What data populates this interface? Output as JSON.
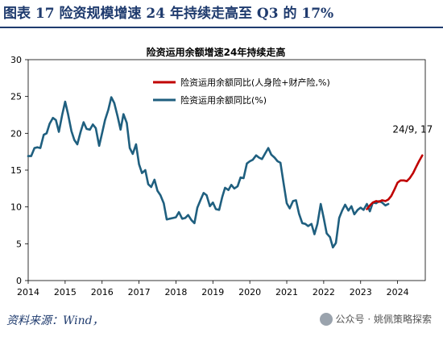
{
  "figure": {
    "title": "图表 17   险资规模增速 24 年持续走高至 Q3 的 17%",
    "source": "资料来源：Wind，",
    "watermark": "公众号 · 姚佩策略探索",
    "watermark_icon": "wechat-icon"
  },
  "colors": {
    "title": "#1f3b6e",
    "series_blue": "#1f5f7f",
    "series_red": "#c00000"
  },
  "chart_data": {
    "type": "line",
    "title": "险资运用余额增速24年持续走高",
    "xlim": [
      2014,
      2024.75
    ],
    "ylim": [
      0,
      30
    ],
    "x_ticks": [
      "2014",
      "2015",
      "2016",
      "2017",
      "2018",
      "2019",
      "2020",
      "2021",
      "2022",
      "2023",
      "2024"
    ],
    "x_tick_values": [
      2014,
      2015,
      2016,
      2017,
      2018,
      2019,
      2020,
      2021,
      2022,
      2023,
      2024
    ],
    "y_ticks": [
      "0",
      "5",
      "10",
      "15",
      "20",
      "25",
      "30"
    ],
    "y_tick_values": [
      0,
      5,
      10,
      15,
      20,
      25,
      30
    ],
    "grid": false,
    "legend_position": "top-right",
    "annotation": {
      "text": "24/9, 17",
      "x": 2024.67,
      "y": 17
    },
    "series": [
      {
        "name": "险资运用余额同比(人身险+财产险,%)",
        "color": "#c00000",
        "x": [
          2023.17,
          2023.25,
          2023.33,
          2023.42,
          2023.5,
          2023.58,
          2023.67,
          2023.75,
          2023.83,
          2023.92,
          2024.0,
          2024.08,
          2024.17,
          2024.25,
          2024.33,
          2024.42,
          2024.5,
          2024.58,
          2024.67
        ],
        "y": [
          9.7,
          10.2,
          10.6,
          10.8,
          10.7,
          10.9,
          10.8,
          11.0,
          11.5,
          12.4,
          13.3,
          13.6,
          13.6,
          13.5,
          13.9,
          14.6,
          15.4,
          16.2,
          17.0
        ]
      },
      {
        "name": "险资运用余额同比(%)",
        "color": "#1f5f7f",
        "x": [
          2014.0,
          2014.08,
          2014.17,
          2014.25,
          2014.33,
          2014.42,
          2014.5,
          2014.58,
          2014.67,
          2014.75,
          2014.83,
          2014.92,
          2015.0,
          2015.08,
          2015.17,
          2015.25,
          2015.33,
          2015.42,
          2015.5,
          2015.58,
          2015.67,
          2015.75,
          2015.83,
          2015.92,
          2016.0,
          2016.08,
          2016.17,
          2016.25,
          2016.33,
          2016.42,
          2016.5,
          2016.58,
          2016.67,
          2016.75,
          2016.83,
          2016.92,
          2017.0,
          2017.08,
          2017.17,
          2017.25,
          2017.33,
          2017.42,
          2017.5,
          2017.58,
          2017.67,
          2017.75,
          2017.83,
          2017.92,
          2018.0,
          2018.08,
          2018.17,
          2018.25,
          2018.33,
          2018.42,
          2018.5,
          2018.58,
          2018.67,
          2018.75,
          2018.83,
          2018.92,
          2019.0,
          2019.08,
          2019.17,
          2019.25,
          2019.33,
          2019.42,
          2019.5,
          2019.58,
          2019.67,
          2019.75,
          2019.83,
          2019.92,
          2020.0,
          2020.08,
          2020.17,
          2020.25,
          2020.33,
          2020.42,
          2020.5,
          2020.58,
          2020.67,
          2020.75,
          2020.83,
          2020.92,
          2021.0,
          2021.08,
          2021.17,
          2021.25,
          2021.33,
          2021.42,
          2021.5,
          2021.58,
          2021.67,
          2021.75,
          2021.83,
          2021.92,
          2022.0,
          2022.08,
          2022.17,
          2022.25,
          2022.33,
          2022.42,
          2022.5,
          2022.58,
          2022.67,
          2022.75,
          2022.83,
          2022.92,
          2023.0,
          2023.08,
          2023.17,
          2023.25,
          2023.33,
          2023.42,
          2023.5,
          2023.58,
          2023.67,
          2023.75
        ],
        "y": [
          16.9,
          16.9,
          18.0,
          18.1,
          18.0,
          19.8,
          20.0,
          21.3,
          22.1,
          21.8,
          20.2,
          22.5,
          24.3,
          22.6,
          20.3,
          19.1,
          18.5,
          20.2,
          21.5,
          20.6,
          20.5,
          21.2,
          20.7,
          18.3,
          20.0,
          21.8,
          23.2,
          24.9,
          24.1,
          22.3,
          20.5,
          22.6,
          21.4,
          18.0,
          17.2,
          18.5,
          15.8,
          14.6,
          15.0,
          13.1,
          12.7,
          13.7,
          12.2,
          11.6,
          10.5,
          8.3,
          8.4,
          8.5,
          8.6,
          9.3,
          8.4,
          8.5,
          8.9,
          8.2,
          7.8,
          9.9,
          11.0,
          11.9,
          11.6,
          10.1,
          10.6,
          9.7,
          9.6,
          11.3,
          12.6,
          12.3,
          13.0,
          12.5,
          12.8,
          14.0,
          13.9,
          15.9,
          16.2,
          16.4,
          17.0,
          16.7,
          16.5,
          17.3,
          18.0,
          17.1,
          16.7,
          16.2,
          16.0,
          13.0,
          10.5,
          9.8,
          10.8,
          10.9,
          9.1,
          7.8,
          7.7,
          7.4,
          7.7,
          6.3,
          7.7,
          10.4,
          8.5,
          6.4,
          5.9,
          4.5,
          5.1,
          8.5,
          9.5,
          10.3,
          9.5,
          10.1,
          9.0,
          9.6,
          9.9,
          9.6,
          10.4,
          9.4,
          10.6,
          10.5,
          10.8,
          10.6,
          10.2,
          10.4
        ]
      }
    ]
  }
}
